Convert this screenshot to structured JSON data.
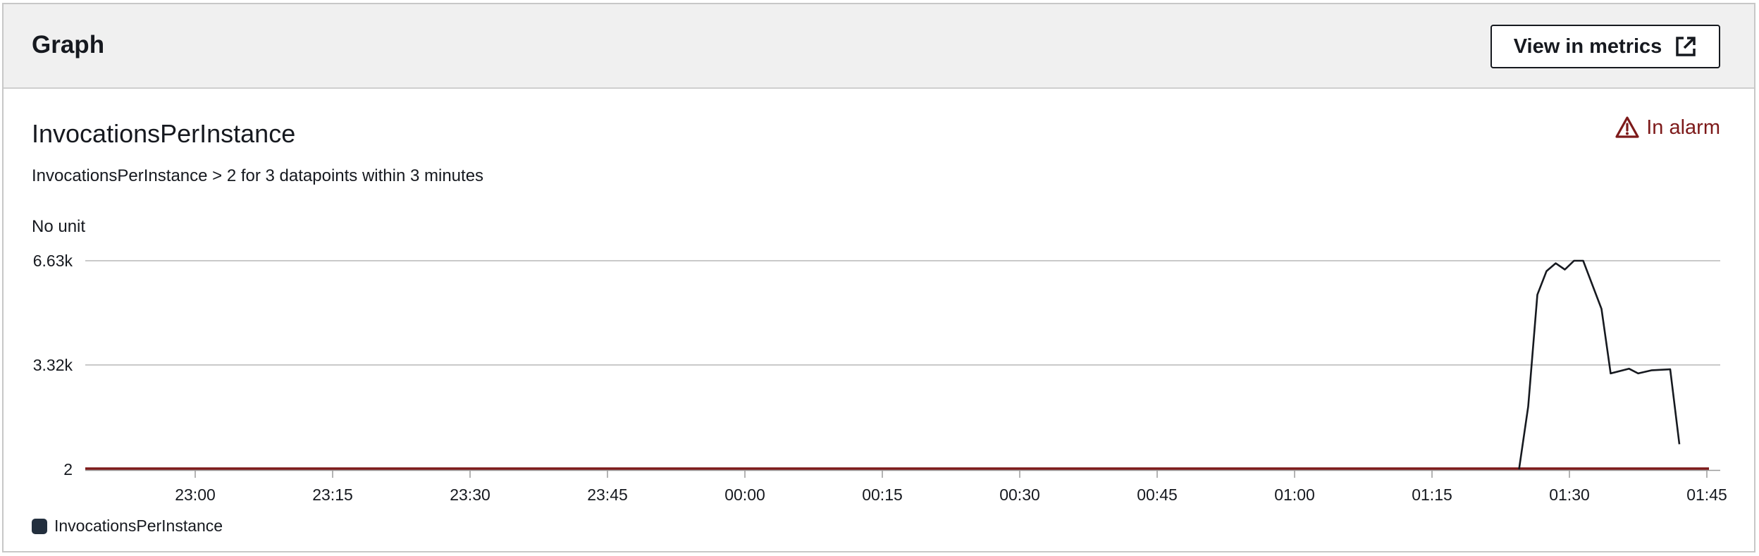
{
  "header": {
    "title": "Graph",
    "view_button_label": "View in metrics",
    "view_button_icon": "external-link-icon"
  },
  "metric": {
    "title": "InvocationsPerInstance",
    "condition": "InvocationsPerInstance > 2 for 3 datapoints within 3 minutes",
    "unit": "No unit",
    "status": {
      "label": "In alarm",
      "icon": "warning-icon",
      "color": "#7d1a1a"
    }
  },
  "legend": {
    "label": "InvocationsPerInstance",
    "swatch_color": "#232f3e"
  },
  "chart_data": {
    "type": "line",
    "ylabel": "No unit",
    "ylim": [
      2,
      6630
    ],
    "y_ticks": [
      {
        "label": "6.63k",
        "value": 6630
      },
      {
        "label": "3.32k",
        "value": 3320
      },
      {
        "label": "2",
        "value": 2
      }
    ],
    "x_ticks": [
      {
        "label": "23:00",
        "minute": 0
      },
      {
        "label": "23:15",
        "minute": 15
      },
      {
        "label": "23:30",
        "minute": 30
      },
      {
        "label": "23:45",
        "minute": 45
      },
      {
        "label": "00:00",
        "minute": 60
      },
      {
        "label": "00:15",
        "minute": 75
      },
      {
        "label": "00:30",
        "minute": 90
      },
      {
        "label": "00:45",
        "minute": 105
      },
      {
        "label": "01:00",
        "minute": 120
      },
      {
        "label": "01:15",
        "minute": 135
      },
      {
        "label": "01:30",
        "minute": 150
      },
      {
        "label": "01:45",
        "minute": 165
      }
    ],
    "xlim": [
      -12,
      166
    ],
    "grid": true,
    "legend_position": "bottom-left",
    "series": [
      {
        "name": "InvocationsPerInstance",
        "color": "#16191f",
        "points": [
          {
            "minute": 144.5,
            "value": 2
          },
          {
            "minute": 145.5,
            "value": 2000
          },
          {
            "minute": 146.5,
            "value": 5550
          },
          {
            "minute": 147.5,
            "value": 6300
          },
          {
            "minute": 148.5,
            "value": 6550
          },
          {
            "minute": 149.5,
            "value": 6350
          },
          {
            "minute": 150.5,
            "value": 6630
          },
          {
            "minute": 151.5,
            "value": 6630
          },
          {
            "minute": 153.5,
            "value": 5100
          },
          {
            "minute": 154.5,
            "value": 3050
          },
          {
            "minute": 156.5,
            "value": 3200
          },
          {
            "minute": 157.5,
            "value": 3050
          },
          {
            "minute": 159.0,
            "value": 3150
          },
          {
            "minute": 161.0,
            "value": 3180
          },
          {
            "minute": 162.0,
            "value": 800
          }
        ]
      }
    ],
    "threshold": {
      "value": 2,
      "color": "#7d1a1a"
    }
  }
}
